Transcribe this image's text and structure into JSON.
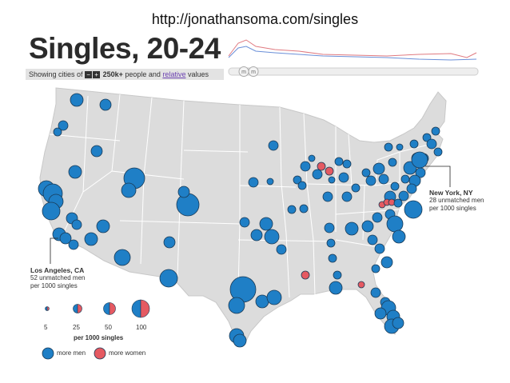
{
  "source_url": "http://jonathansoma.com/singles",
  "title": "Singles, 20-24",
  "subtitle": {
    "prefix": "Showing cities of",
    "minus_icon": "−",
    "plus_icon": "+",
    "threshold": "250k+",
    "middle": "people and",
    "link": "relative",
    "suffix": "values"
  },
  "slider": {
    "handle_left": "m",
    "handle_right": "m"
  },
  "annotations": {
    "new_york": {
      "city": "New York, NY",
      "line1": "28 unmatched men",
      "line2": "per 1000 singles"
    },
    "los_angeles": {
      "city": "Los Angeles, CA",
      "line1": "52 unmatched men",
      "line2": "per 1000 singles"
    }
  },
  "legend": {
    "size_labels": [
      "5",
      "25",
      "50",
      "100"
    ],
    "size_values": [
      5,
      25,
      50,
      100
    ],
    "size_title": "per 1000 singles",
    "more_men": "more men",
    "more_women": "more women"
  },
  "colors": {
    "men": "#1f7fc6",
    "women": "#e55a62",
    "land": "#dcdcdc",
    "border": "#ffffff",
    "stroke": "#1a3a56"
  },
  "icons": [
    "minus-icon",
    "plus-icon",
    "slider-handle-icon"
  ]
}
